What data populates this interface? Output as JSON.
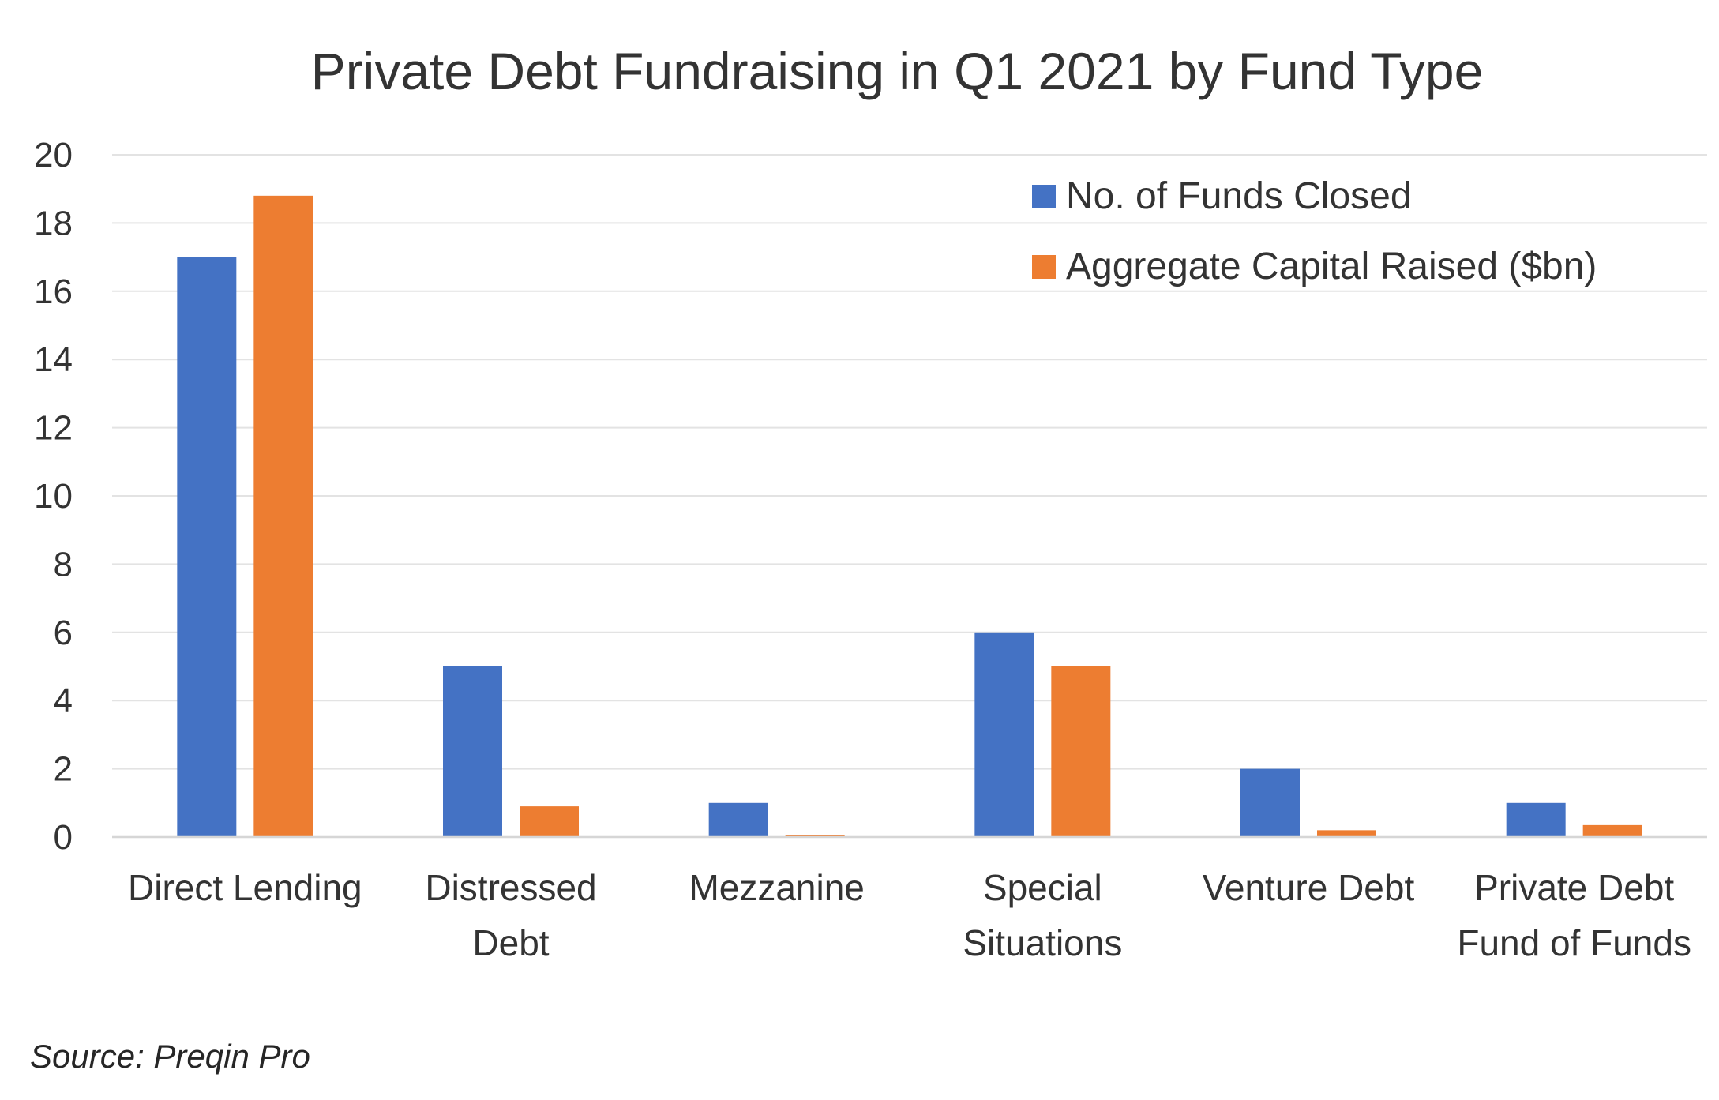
{
  "chart_data": {
    "type": "bar",
    "title": "Private Debt Fundraising in Q1 2021 by Fund Type",
    "categories": [
      [
        "Direct Lending"
      ],
      [
        "Distressed",
        "Debt"
      ],
      [
        "Mezzanine"
      ],
      [
        "Special",
        "Situations"
      ],
      [
        "Venture Debt"
      ],
      [
        "Private Debt",
        "Fund of Funds"
      ]
    ],
    "series": [
      {
        "name": "No. of Funds Closed",
        "color": "#4472c4",
        "values": [
          17,
          5,
          1,
          6,
          2,
          1
        ]
      },
      {
        "name": "Aggregate Capital Raised ($bn)",
        "color": "#ed7d31",
        "values": [
          18.8,
          0.9,
          0.05,
          5,
          0.2,
          0.35
        ]
      }
    ],
    "ylim": [
      0,
      20
    ],
    "yticks": [
      "0",
      "2",
      "4",
      "6",
      "8",
      "10",
      "12",
      "14",
      "16",
      "18",
      "20"
    ],
    "grid": true,
    "legend": "top-right",
    "xlabel": "",
    "ylabel": ""
  },
  "source": "Source: Preqin Pro"
}
